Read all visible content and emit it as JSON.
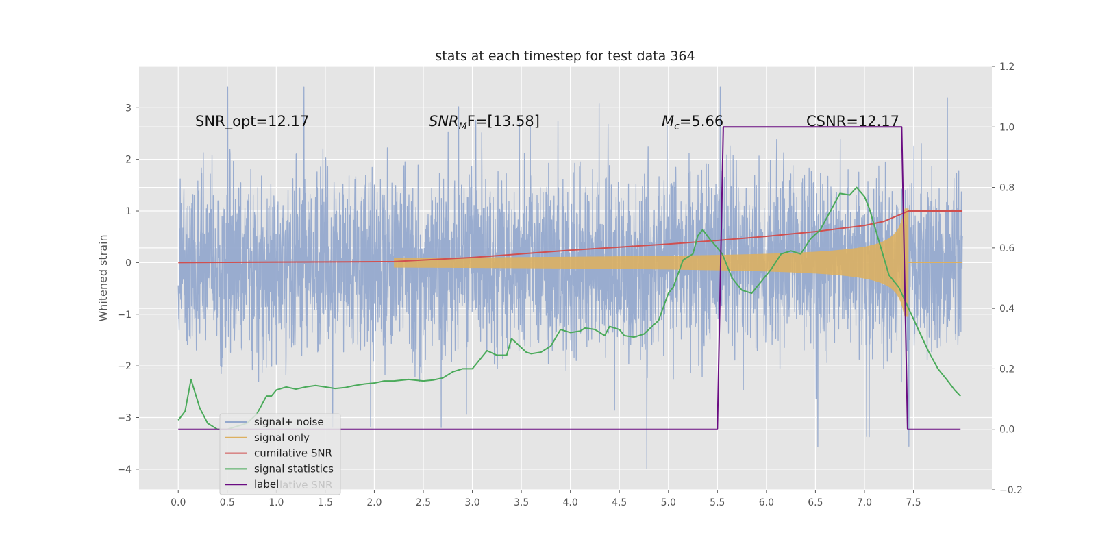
{
  "chart_data": {
    "type": "line",
    "title": "stats at each timestep for test data 364",
    "xlabel": "",
    "ylabel": "Whitened strain",
    "xlim": [
      -0.4,
      8.3
    ],
    "ylim": [
      -4.4,
      3.8
    ],
    "y2lim": [
      -0.2,
      1.2
    ],
    "grid": true,
    "x_ticks": [
      "0.0",
      "0.5",
      "1.0",
      "1.5",
      "2.0",
      "2.5",
      "3.0",
      "3.5",
      "4.0",
      "4.5",
      "5.0",
      "5.5",
      "6.0",
      "6.5",
      "7.0",
      "7.5"
    ],
    "y_ticks": [
      "−4",
      "−3",
      "−2",
      "−1",
      "0",
      "1",
      "2",
      "3"
    ],
    "y2_ticks": [
      "−0.2",
      "0.0",
      "0.2",
      "0.4",
      "0.6",
      "0.8",
      "1.0",
      "1.2"
    ],
    "annotations": {
      "snr_opt": "SNR_opt=12.17",
      "snr_mf_main": "SNR",
      "snr_mf_sub": "M",
      "snr_mf_rest": "F=[13.58]",
      "mc_main": "M",
      "mc_sub": "c",
      "mc_rest": "=5.66",
      "csnr": "CSNR=12.17"
    },
    "series": [
      {
        "name": "signal+ noise",
        "color": "#95a9cd",
        "axis": "left",
        "style": "noise",
        "x_range": [
          0.0,
          8.0
        ],
        "envelope": [
          -4.0,
          3.4
        ]
      },
      {
        "name": "signal only",
        "color": "#ddb060",
        "axis": "left",
        "style": "chirp",
        "x_range": [
          2.2,
          7.45
        ],
        "peak_amplitude": 1.05
      },
      {
        "name": "cumilative SNR",
        "color": "#d05050",
        "axis": "left",
        "x": [
          0.0,
          2.2,
          3.0,
          3.5,
          4.0,
          4.5,
          5.0,
          5.5,
          6.0,
          6.5,
          7.0,
          7.2,
          7.45,
          8.0
        ],
        "y": [
          0.0,
          0.02,
          0.1,
          0.17,
          0.24,
          0.3,
          0.36,
          0.43,
          0.51,
          0.6,
          0.72,
          0.8,
          1.0,
          1.0
        ]
      },
      {
        "name": "signal statistics",
        "color": "#4aaa5a",
        "axis": "right",
        "x": [
          0.0,
          0.07,
          0.13,
          0.22,
          0.3,
          0.4,
          0.5,
          0.6,
          0.7,
          0.8,
          0.9,
          0.95,
          1.0,
          1.05,
          1.1,
          1.2,
          1.3,
          1.4,
          1.5,
          1.6,
          1.7,
          1.8,
          1.9,
          2.0,
          2.1,
          2.2,
          2.35,
          2.5,
          2.6,
          2.7,
          2.8,
          2.9,
          3.0,
          3.1,
          3.15,
          3.25,
          3.35,
          3.4,
          3.5,
          3.55,
          3.6,
          3.7,
          3.8,
          3.9,
          4.0,
          4.1,
          4.15,
          4.25,
          4.35,
          4.4,
          4.5,
          4.55,
          4.65,
          4.75,
          4.8,
          4.9,
          5.0,
          5.05,
          5.15,
          5.25,
          5.3,
          5.35,
          5.42,
          5.5,
          5.55,
          5.65,
          5.75,
          5.85,
          5.95,
          6.05,
          6.15,
          6.25,
          6.35,
          6.45,
          6.55,
          6.6,
          6.7,
          6.75,
          6.85,
          6.92,
          7.0,
          7.05,
          7.15,
          7.25,
          7.35,
          7.45,
          7.55,
          7.65,
          7.75,
          7.85,
          7.92,
          7.98
        ],
        "y": [
          0.03,
          0.06,
          0.165,
          0.07,
          0.02,
          0.0,
          0.0,
          0.01,
          0.02,
          0.05,
          0.11,
          0.11,
          0.13,
          0.135,
          0.14,
          0.133,
          0.14,
          0.145,
          0.14,
          0.135,
          0.138,
          0.145,
          0.15,
          0.153,
          0.16,
          0.16,
          0.165,
          0.16,
          0.163,
          0.17,
          0.19,
          0.2,
          0.2,
          0.24,
          0.26,
          0.245,
          0.245,
          0.3,
          0.27,
          0.255,
          0.25,
          0.255,
          0.275,
          0.33,
          0.32,
          0.325,
          0.335,
          0.33,
          0.31,
          0.34,
          0.33,
          0.31,
          0.305,
          0.315,
          0.33,
          0.36,
          0.45,
          0.47,
          0.56,
          0.58,
          0.64,
          0.66,
          0.63,
          0.6,
          0.58,
          0.5,
          0.46,
          0.45,
          0.49,
          0.53,
          0.58,
          0.59,
          0.58,
          0.63,
          0.66,
          0.69,
          0.75,
          0.78,
          0.775,
          0.8,
          0.77,
          0.73,
          0.62,
          0.51,
          0.47,
          0.4,
          0.33,
          0.26,
          0.2,
          0.16,
          0.13,
          0.11
        ]
      },
      {
        "name": "label",
        "color": "#6a0c82",
        "axis": "right",
        "x": [
          0.0,
          5.5,
          5.56,
          7.38,
          7.44,
          7.98
        ],
        "y": [
          0.0,
          0.0,
          1.0,
          1.0,
          0.0,
          0.0
        ]
      }
    ],
    "legend": {
      "placement": "lower-left",
      "entries": [
        "signal+ noise",
        "signal only",
        "cumilative SNR",
        "signal statistics",
        "label"
      ],
      "ghost_text": "lative SNR"
    }
  }
}
